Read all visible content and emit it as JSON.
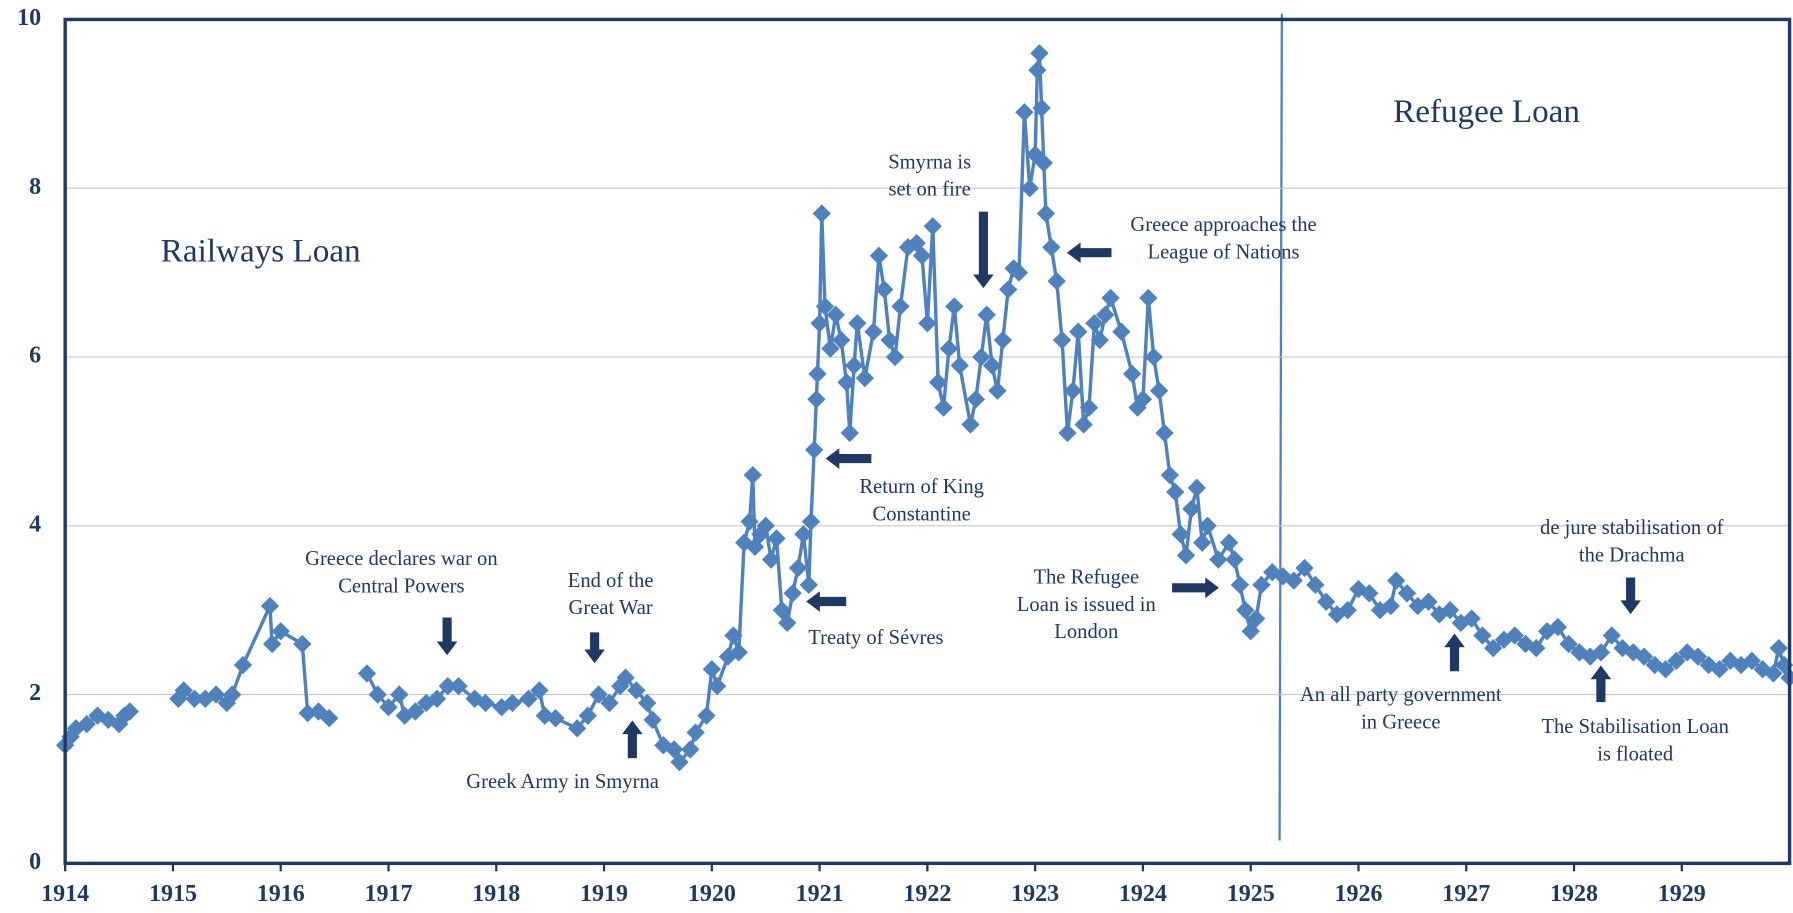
{
  "chart_data": {
    "type": "line",
    "labels": [
      "Railways Loan",
      "Refugee Loan"
    ],
    "annotations": [
      {
        "text": [
          "Smyrna is",
          "set on fire"
        ]
      },
      {
        "text": [
          "Greece approaches the",
          "League of Nations"
        ]
      },
      {
        "text": [
          "Return of King",
          "Constantine"
        ]
      },
      {
        "text": [
          "Treaty of Sévres"
        ]
      },
      {
        "text": [
          "The Refugee",
          "Loan is issued in",
          "London"
        ]
      },
      {
        "text": [
          "Greece declares war on",
          "Central Powers"
        ]
      },
      {
        "text": [
          "End of the",
          "Great War"
        ]
      },
      {
        "text": [
          "Greek Army in Smyrna"
        ]
      },
      {
        "text": [
          "de jure stabilisation  of",
          "the Drachma"
        ]
      },
      {
        "text": [
          "An all party government",
          "in Greece"
        ]
      },
      {
        "text": [
          "The Stabilisation Loan",
          "is floated"
        ]
      }
    ],
    "x": [
      1914.0,
      1914.05,
      1914.1,
      1914.2,
      1914.3,
      1914.4,
      1914.5,
      1914.55,
      1914.6,
      1914.8,
      1915.05,
      1915.1,
      1915.2,
      1915.3,
      1915.4,
      1915.5,
      1915.55,
      1915.65,
      1915.9,
      1915.92,
      1916.0,
      1916.2,
      1916.25,
      1916.35,
      1916.45,
      1916.6,
      1916.8,
      1916.9,
      1917.0,
      1917.1,
      1917.15,
      1917.25,
      1917.35,
      1917.45,
      1917.55,
      1917.65,
      1917.8,
      1917.9,
      1918.05,
      1918.15,
      1918.3,
      1918.4,
      1918.45,
      1918.55,
      1918.75,
      1918.85,
      1918.95,
      1919.05,
      1919.15,
      1919.2,
      1919.3,
      1919.4,
      1919.45,
      1919.55,
      1919.65,
      1919.7,
      1919.8,
      1919.85,
      1919.95,
      1920.0,
      1920.05,
      1920.15,
      1920.2,
      1920.25,
      1920.3,
      1920.35,
      1920.38,
      1920.4,
      1920.45,
      1920.5,
      1920.55,
      1920.6,
      1920.65,
      1920.7,
      1920.75,
      1920.8,
      1920.85,
      1920.9,
      1920.92,
      1920.95,
      1920.97,
      1920.98,
      1921.0,
      1921.02,
      1921.05,
      1921.1,
      1921.15,
      1921.2,
      1921.25,
      1921.28,
      1921.32,
      1921.35,
      1921.42,
      1921.5,
      1921.55,
      1921.6,
      1921.65,
      1921.7,
      1921.75,
      1921.82,
      1921.9,
      1921.95,
      1922.0,
      1922.05,
      1922.1,
      1922.15,
      1922.2,
      1922.25,
      1922.3,
      1922.4,
      1922.45,
      1922.5,
      1922.55,
      1922.6,
      1922.65,
      1922.7,
      1922.75,
      1922.8,
      1922.85,
      1922.9,
      1922.95,
      1923.0,
      1923.02,
      1923.04,
      1923.06,
      1923.08,
      1923.1,
      1923.15,
      1923.2,
      1923.25,
      1923.3,
      1923.35,
      1923.4,
      1923.45,
      1923.5,
      1923.55,
      1923.6,
      1923.65,
      1923.7,
      1923.8,
      1923.9,
      1923.95,
      1924.0,
      1924.05,
      1924.1,
      1924.15,
      1924.2,
      1924.25,
      1924.3,
      1924.35,
      1924.4,
      1924.45,
      1924.5,
      1924.55,
      1924.6,
      1924.7,
      1924.8,
      1924.85,
      1924.9,
      1924.95,
      1925.0,
      1925.05,
      1925.1,
      1925.2,
      1925.3,
      1925.4,
      1925.5,
      1925.6,
      1925.7,
      1925.8,
      1925.9,
      1926.0,
      1926.1,
      1926.2,
      1926.3,
      1926.35,
      1926.45,
      1926.55,
      1926.65,
      1926.75,
      1926.85,
      1926.95,
      1927.05,
      1927.15,
      1927.25,
      1927.35,
      1927.45,
      1927.55,
      1927.65,
      1927.75,
      1927.85,
      1927.95,
      1928.05,
      1928.15,
      1928.25,
      1928.35,
      1928.45,
      1928.55,
      1928.65,
      1928.75,
      1928.85,
      1928.95,
      1929.05,
      1929.15,
      1929.25,
      1929.35,
      1929.45,
      1929.55,
      1929.65,
      1929.75,
      1929.85,
      1929.9,
      1929.95,
      1930.0
    ],
    "series": [
      {
        "color": "#4f81bd",
        "values": [
          1.4,
          1.5,
          1.6,
          1.65,
          1.75,
          1.7,
          1.65,
          1.75,
          1.8,
          null,
          1.95,
          2.05,
          1.95,
          1.95,
          2.0,
          1.9,
          2.0,
          2.35,
          3.05,
          2.6,
          2.75,
          2.6,
          1.78,
          1.8,
          1.72,
          null,
          2.25,
          2.0,
          1.85,
          2.0,
          1.75,
          1.8,
          1.9,
          1.95,
          2.1,
          2.1,
          1.95,
          1.9,
          1.85,
          1.9,
          1.95,
          2.05,
          1.75,
          1.72,
          1.6,
          1.75,
          2.0,
          1.9,
          2.1,
          2.2,
          2.05,
          1.9,
          1.7,
          1.4,
          1.35,
          1.2,
          1.35,
          1.55,
          1.75,
          2.3,
          2.1,
          2.45,
          2.7,
          2.5,
          3.8,
          4.05,
          4.6,
          3.75,
          3.9,
          4.0,
          3.6,
          3.85,
          3.0,
          2.85,
          3.2,
          3.5,
          3.9,
          3.3,
          4.05,
          4.9,
          5.5,
          5.8,
          6.4,
          7.7,
          6.6,
          6.1,
          6.5,
          6.2,
          5.7,
          5.1,
          5.9,
          6.4,
          5.75,
          6.3,
          7.2,
          6.8,
          6.2,
          6.0,
          6.6,
          7.3,
          7.35,
          7.2,
          6.4,
          7.55,
          5.7,
          5.4,
          6.1,
          6.6,
          5.9,
          5.2,
          5.5,
          6.0,
          6.5,
          5.9,
          5.6,
          6.2,
          6.8,
          7.05,
          7.0,
          8.9,
          8.0,
          8.4,
          9.4,
          9.6,
          8.95,
          8.3,
          7.7,
          7.3,
          6.9,
          6.2,
          5.1,
          5.6,
          6.3,
          5.2,
          5.4,
          6.4,
          6.2,
          6.5,
          6.7,
          6.3,
          5.8,
          5.4,
          5.5,
          6.7,
          6.0,
          5.6,
          5.1,
          4.6,
          4.4,
          3.9,
          3.65,
          4.2,
          4.45,
          3.8,
          4.0,
          3.6,
          3.8,
          3.6,
          3.3,
          3.0,
          2.75,
          2.9,
          3.3,
          3.45,
          3.4,
          3.35,
          3.5,
          3.3,
          3.1,
          2.95,
          3.0,
          3.25,
          3.2,
          3.0,
          3.05,
          3.35,
          3.2,
          3.05,
          3.1,
          2.95,
          3.0,
          2.85,
          2.9,
          2.7,
          2.55,
          2.65,
          2.7,
          2.6,
          2.55,
          2.75,
          2.8,
          2.6,
          2.5,
          2.45,
          2.5,
          2.7,
          2.55,
          2.5,
          2.45,
          2.35,
          2.3,
          2.4,
          2.5,
          2.45,
          2.35,
          2.3,
          2.4,
          2.35,
          2.4,
          2.3,
          2.25,
          2.55,
          2.35,
          2.2
        ]
      }
    ],
    "xlim": [
      1914,
      1930
    ],
    "xticks": [
      1914,
      1915,
      1916,
      1917,
      1918,
      1919,
      1920,
      1921,
      1922,
      1923,
      1924,
      1925,
      1926,
      1927,
      1928,
      1929
    ],
    "ylim": [
      0,
      10
    ],
    "yticks": [
      0,
      2,
      4,
      6,
      8,
      10
    ],
    "grid": true
  }
}
